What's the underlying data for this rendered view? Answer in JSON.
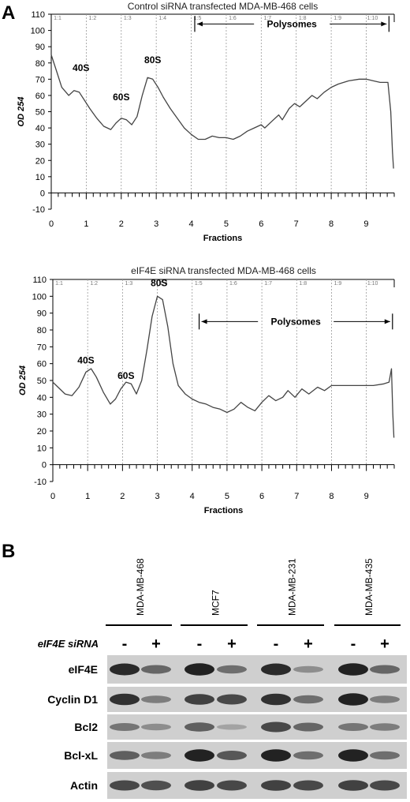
{
  "panel_a_label": "A",
  "panel_b_label": "B",
  "chart_data": [
    {
      "type": "line",
      "title": "Control siRNA transfected MDA-MB-468 cells",
      "xlabel": "Fractions",
      "ylabel": "OD 254",
      "xlim": [
        0,
        9.8
      ],
      "ylim": [
        -10,
        110
      ],
      "xticks": [
        "0",
        "1",
        "2",
        "3",
        "4",
        "5",
        "6",
        "7",
        "8",
        "9"
      ],
      "yticks": [
        "-10",
        "0",
        "10",
        "20",
        "30",
        "40",
        "50",
        "60",
        "70",
        "80",
        "90",
        "100",
        "110"
      ],
      "fraction_markers": [
        "1:1",
        "1:2",
        "1:3",
        "1:4",
        "1:5",
        "1:6",
        "1:7",
        "1:8",
        "1:9",
        "1:10"
      ],
      "fraction_positions": [
        0,
        1,
        2,
        3,
        4,
        5,
        6,
        7,
        8,
        9
      ],
      "peak_labels": [
        {
          "text": "40S",
          "x": 0.85,
          "y": 75
        },
        {
          "text": "60S",
          "x": 2.0,
          "y": 57
        },
        {
          "text": "80S",
          "x": 2.9,
          "y": 80
        }
      ],
      "polysome_label": "Polysomes",
      "polysome_range": [
        4.1,
        9.65
      ],
      "polysome_arrow_y": 104,
      "x": [
        0,
        0.15,
        0.3,
        0.5,
        0.65,
        0.8,
        0.95,
        1.1,
        1.3,
        1.5,
        1.7,
        1.85,
        2.0,
        2.15,
        2.3,
        2.45,
        2.6,
        2.75,
        2.9,
        3.05,
        3.2,
        3.4,
        3.6,
        3.8,
        4.0,
        4.2,
        4.4,
        4.6,
        4.8,
        5.0,
        5.2,
        5.4,
        5.6,
        5.8,
        6.0,
        6.1,
        6.3,
        6.5,
        6.6,
        6.8,
        6.95,
        7.1,
        7.3,
        7.45,
        7.6,
        7.8,
        8.0,
        8.2,
        8.5,
        8.8,
        9.0,
        9.2,
        9.4,
        9.6,
        9.62,
        9.7,
        9.75,
        9.78
      ],
      "y": [
        85,
        75,
        65,
        60,
        63,
        62,
        57,
        52,
        46,
        41,
        39,
        43,
        46,
        45,
        42,
        47,
        60,
        71,
        70,
        65,
        59,
        52,
        46,
        40,
        36,
        33,
        33,
        35,
        34,
        34,
        33,
        35,
        38,
        40,
        42,
        40,
        44,
        48,
        45,
        52,
        55,
        53,
        57,
        60,
        58,
        62,
        65,
        67,
        69,
        70,
        70,
        69,
        68,
        68,
        68,
        50,
        25,
        15
      ]
    },
    {
      "type": "line",
      "title": "eIF4E siRNA transfected MDA-MB-468 cells",
      "xlabel": "Fractions",
      "ylabel": "OD 254",
      "xlim": [
        0,
        9.8
      ],
      "ylim": [
        -10,
        110
      ],
      "xticks": [
        "0",
        "1",
        "2",
        "3",
        "4",
        "5",
        "6",
        "7",
        "8",
        "9"
      ],
      "yticks": [
        "-10",
        "0",
        "10",
        "20",
        "30",
        "40",
        "50",
        "60",
        "70",
        "80",
        "90",
        "100",
        "110"
      ],
      "fraction_markers": [
        "1:1",
        "1:2",
        "1:3",
        "1:4",
        "1:5",
        "1:6",
        "1:7",
        "1:8",
        "1:9",
        "1:10"
      ],
      "fraction_positions": [
        0,
        1,
        2,
        3,
        4,
        5,
        6,
        7,
        8,
        9
      ],
      "peak_labels": [
        {
          "text": "40S",
          "x": 0.95,
          "y": 60
        },
        {
          "text": "60S",
          "x": 2.1,
          "y": 51
        },
        {
          "text": "80S",
          "x": 3.05,
          "y": 106
        }
      ],
      "polysome_label": "Polysomes",
      "polysome_range": [
        4.2,
        9.75
      ],
      "polysome_arrow_y": 85,
      "x": [
        0,
        0.15,
        0.35,
        0.55,
        0.75,
        0.95,
        1.1,
        1.25,
        1.45,
        1.65,
        1.8,
        1.95,
        2.1,
        2.25,
        2.4,
        2.55,
        2.7,
        2.85,
        3.0,
        3.15,
        3.3,
        3.45,
        3.6,
        3.8,
        4.0,
        4.2,
        4.4,
        4.6,
        4.8,
        5.0,
        5.2,
        5.4,
        5.6,
        5.8,
        6.0,
        6.2,
        6.4,
        6.6,
        6.75,
        6.95,
        7.15,
        7.35,
        7.6,
        7.8,
        8.0,
        8.3,
        8.6,
        8.9,
        9.2,
        9.5,
        9.65,
        9.72,
        9.76,
        9.79
      ],
      "y": [
        49,
        46,
        42,
        41,
        46,
        55,
        57,
        52,
        43,
        36,
        39,
        45,
        49,
        48,
        42,
        50,
        68,
        88,
        100,
        98,
        82,
        60,
        47,
        42,
        39,
        37,
        36,
        34,
        33,
        31,
        33,
        37,
        34,
        32,
        37,
        41,
        38,
        40,
        44,
        40,
        45,
        42,
        46,
        44,
        47,
        47,
        47,
        47,
        47,
        48,
        49,
        57,
        30,
        16
      ]
    }
  ],
  "blot": {
    "cell_lines": [
      "MDA-MB-468",
      "MCF7",
      "MDA-MB-231",
      "MDA-MB-435"
    ],
    "sirna_label": "eIF4E siRNA",
    "lane_signs": [
      "-",
      "+",
      "-",
      "+",
      "-",
      "+",
      "-",
      "+"
    ],
    "rows": [
      "eIF4E",
      "Cyclin D1",
      "Bcl2",
      "Bcl-xL",
      "Actin"
    ],
    "band_intensity": [
      [
        0.9,
        0.5,
        0.95,
        0.45,
        0.9,
        0.25,
        0.95,
        0.5
      ],
      [
        0.85,
        0.35,
        0.75,
        0.7,
        0.85,
        0.45,
        0.95,
        0.35
      ],
      [
        0.4,
        0.25,
        0.55,
        0.1,
        0.7,
        0.5,
        0.4,
        0.35
      ],
      [
        0.55,
        0.35,
        0.95,
        0.6,
        0.95,
        0.45,
        0.95,
        0.45
      ],
      [
        0.7,
        0.65,
        0.75,
        0.7,
        0.75,
        0.7,
        0.75,
        0.7
      ]
    ],
    "colors": {
      "band": "#111111",
      "strip_bg": "#cfcfcf"
    }
  }
}
